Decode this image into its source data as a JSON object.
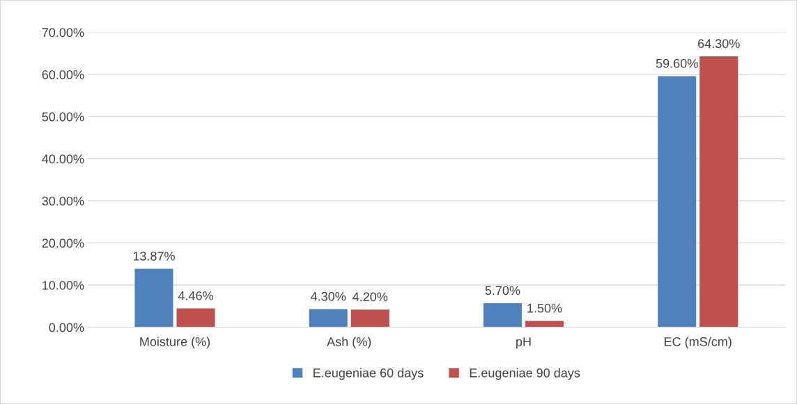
{
  "chart_data": {
    "type": "bar",
    "categories": [
      "Moisture (%)",
      "Ash (%)",
      "pH",
      "EC (mS/cm)"
    ],
    "series": [
      {
        "name": "E.eugeniae 60 days",
        "color": "#4f81bd",
        "values": [
          13.87,
          4.3,
          5.7,
          59.6
        ],
        "value_labels": [
          "13.87%",
          "4.30%",
          "5.70%",
          "59.60%"
        ]
      },
      {
        "name": "E.eugeniae 90 days",
        "color": "#c0504d",
        "values": [
          4.46,
          4.2,
          1.5,
          64.3
        ],
        "value_labels": [
          "4.46%",
          "4.20%",
          "1.50%",
          "64.30%"
        ]
      }
    ],
    "ylim": [
      0,
      70
    ],
    "yticks": [
      {
        "value": 0,
        "label": "0.00%"
      },
      {
        "value": 10,
        "label": "10.00%"
      },
      {
        "value": 20,
        "label": "20.00%"
      },
      {
        "value": 30,
        "label": "30.00%"
      },
      {
        "value": 40,
        "label": "40.00%"
      },
      {
        "value": 50,
        "label": "50.00%"
      },
      {
        "value": 60,
        "label": "60.00%"
      },
      {
        "value": 70,
        "label": "70.00%"
      }
    ],
    "grid": "y",
    "legend": "bottom"
  }
}
